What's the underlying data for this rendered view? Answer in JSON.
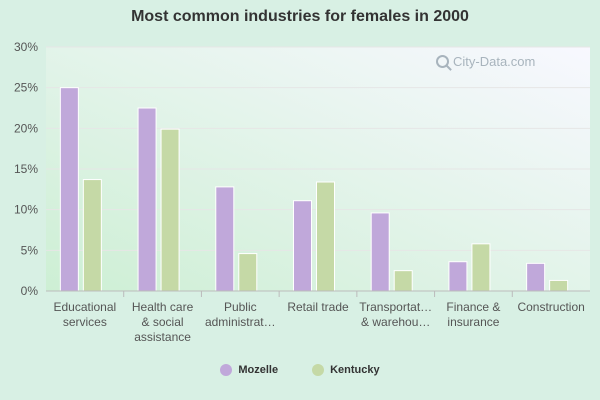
{
  "chart_data": {
    "type": "bar",
    "title": "Most common industries for females in 2000",
    "categories": [
      [
        "Educational",
        "services"
      ],
      [
        "Health care",
        "& social",
        "assistance"
      ],
      [
        "Public",
        "administrat…"
      ],
      [
        "Retail trade"
      ],
      [
        "Transportat…",
        "& warehou…"
      ],
      [
        "Finance &",
        "insurance"
      ],
      [
        "Construction"
      ]
    ],
    "series": [
      {
        "name": "Mozelle",
        "color": "#c0a8da",
        "values": [
          25.0,
          22.5,
          12.8,
          11.1,
          9.6,
          3.6,
          3.4
        ]
      },
      {
        "name": "Kentucky",
        "color": "#c5d9a6",
        "values": [
          13.7,
          19.9,
          4.6,
          13.4,
          2.5,
          5.8,
          1.3
        ]
      }
    ],
    "ylim": [
      0,
      30
    ],
    "yticks": [
      "0%",
      "5%",
      "10%",
      "15%",
      "20%",
      "25%",
      "30%"
    ],
    "ytick_values": [
      0,
      5,
      10,
      15,
      20,
      25,
      30
    ],
    "grid": true,
    "legend_position": "bottom"
  },
  "watermark": "City-Data.com"
}
